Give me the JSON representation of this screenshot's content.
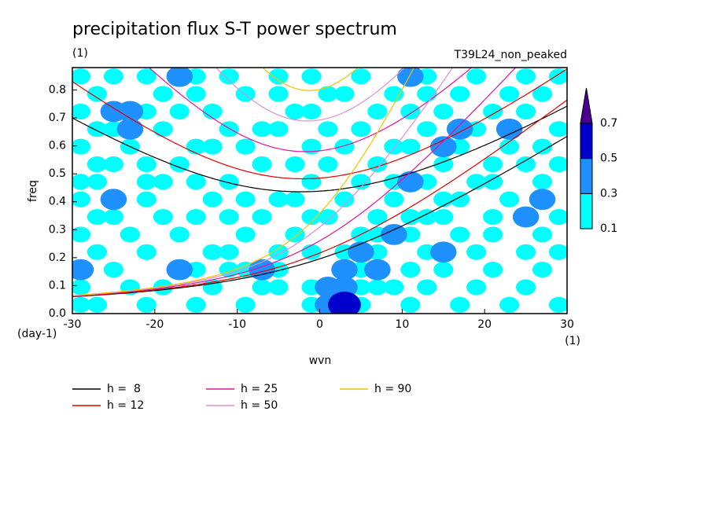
{
  "chart_data": {
    "type": "spectrum",
    "title": "precipitation flux S-T power spectrum",
    "subtitle": "(1)",
    "run_label": "T39L24_non_peaked",
    "x_label": "wvn",
    "y_label": "freq",
    "y_unit": "(day-1)",
    "x_unit": "(1)",
    "xlim": [
      -30,
      30
    ],
    "ylim": [
      0,
      0.88
    ],
    "xticks": [
      -30,
      -20,
      -10,
      0,
      10,
      20,
      30
    ],
    "yticks": [
      {
        "value": 0,
        "label": "0.0"
      },
      0.1,
      0.2,
      0.3,
      0.4,
      0.5,
      0.6,
      0.7,
      0.8
    ],
    "colorbar": {
      "levels": [
        0.1,
        0.3,
        0.5,
        0.7
      ],
      "colors": [
        "#00ffff",
        "#1e90ff",
        "#0000cd",
        "#4b0092"
      ]
    },
    "field": {
      "values": [
        [
          0.1,
          0.1,
          0,
          0,
          0.1,
          0,
          0,
          0.1,
          0,
          0,
          0.1,
          0,
          0,
          0,
          0.1,
          0.3,
          0.5,
          0.1,
          0,
          0,
          0.1,
          0,
          0,
          0.1,
          0,
          0,
          0.1,
          0,
          0,
          0.1
        ],
        [
          0.1,
          0,
          0,
          0.1,
          0,
          0.1,
          0,
          0,
          0.1,
          0,
          0,
          0.1,
          0.1,
          0,
          0.1,
          0.3,
          0.3,
          0.1,
          0.1,
          0.1,
          0,
          0.1,
          0,
          0,
          0.1,
          0,
          0,
          0.1,
          0,
          0
        ],
        [
          0.3,
          0,
          0.1,
          0,
          0,
          0,
          0.3,
          0.1,
          0,
          0.1,
          0.1,
          0.3,
          0.1,
          0,
          0,
          0,
          0.3,
          0.1,
          0.3,
          0,
          0.1,
          0,
          0.1,
          0,
          0,
          0.1,
          0,
          0,
          0.1,
          0
        ],
        [
          0,
          0.1,
          0,
          0,
          0.1,
          0,
          0,
          0,
          0.1,
          0.1,
          0,
          0,
          0.1,
          0,
          0.1,
          0,
          0.1,
          0.3,
          0.1,
          0,
          0,
          0.1,
          0.3,
          0,
          0.1,
          0,
          0,
          0.1,
          0,
          0.1
        ],
        [
          0.1,
          0,
          0,
          0.1,
          0,
          0,
          0.1,
          0,
          0,
          0,
          0.1,
          0,
          0,
          0.1,
          0,
          0,
          0,
          0.1,
          0.1,
          0.3,
          0.1,
          0,
          0,
          0.1,
          0,
          0.1,
          0,
          0,
          0.1,
          0
        ],
        [
          0,
          0.1,
          0.1,
          0,
          0,
          0.1,
          0,
          0.1,
          0,
          0.1,
          0,
          0.1,
          0,
          0,
          0.1,
          0.1,
          0,
          0,
          0.1,
          0,
          0.1,
          0.1,
          0.1,
          0,
          0,
          0.1,
          0,
          0.3,
          0,
          0.1
        ],
        [
          0.1,
          0,
          0.3,
          0,
          0.1,
          0,
          0,
          0,
          0.1,
          0,
          0.1,
          0,
          0.1,
          0.1,
          0,
          0,
          0.1,
          0,
          0,
          0.1,
          0,
          0,
          0.1,
          0.1,
          0,
          0,
          0.1,
          0,
          0.3,
          0
        ],
        [
          0.1,
          0.1,
          0,
          0,
          0.1,
          0.1,
          0,
          0.1,
          0,
          0.1,
          0,
          0,
          0,
          0,
          0.1,
          0,
          0,
          0.1,
          0,
          0.1,
          0.3,
          0.1,
          0,
          0,
          0.1,
          0.1,
          0,
          0,
          0.1,
          0
        ],
        [
          0,
          0.1,
          0.1,
          0,
          0.1,
          0,
          0.1,
          0,
          0,
          0,
          0,
          0.1,
          0,
          0.1,
          0,
          0.1,
          0,
          0,
          0.1,
          0,
          0,
          0,
          0.1,
          0,
          0,
          0.1,
          0,
          0.1,
          0,
          0.1
        ],
        [
          0.1,
          0,
          0,
          0.1,
          0,
          0,
          0,
          0.1,
          0.1,
          0,
          0.1,
          0,
          0,
          0,
          0.1,
          0,
          0.1,
          0,
          0,
          0.1,
          0.1,
          0,
          0.3,
          0.1,
          0,
          0,
          0.1,
          0,
          0.1,
          0
        ],
        [
          0,
          0.1,
          0.1,
          0.3,
          0,
          0.1,
          0,
          0,
          0,
          0.1,
          0,
          0.1,
          0.1,
          0,
          0,
          0.1,
          0,
          0.1,
          0,
          0,
          0,
          0.1,
          0,
          0.3,
          0.1,
          0,
          0.3,
          0,
          0,
          0.1
        ],
        [
          0.1,
          0,
          0.3,
          0.3,
          0.1,
          0,
          0.1,
          0,
          0.1,
          0,
          0,
          0,
          0,
          0.1,
          0.1,
          0,
          0,
          0,
          0.1,
          0,
          0.1,
          0,
          0.1,
          0,
          0,
          0.1,
          0,
          0.1,
          0,
          0
        ],
        [
          0,
          0.1,
          0,
          0,
          0,
          0.1,
          0,
          0.1,
          0,
          0,
          0.1,
          0,
          0.1,
          0,
          0,
          0.1,
          0.1,
          0,
          0,
          0.1,
          0,
          0.1,
          0,
          0.1,
          0,
          0,
          0.1,
          0,
          0.1,
          0
        ],
        [
          0.1,
          0,
          0.1,
          0,
          0.1,
          0,
          0.3,
          0.1,
          0,
          0.1,
          0,
          0,
          0.1,
          0,
          0.1,
          0,
          0,
          0.1,
          0,
          0,
          0.3,
          0.1,
          0,
          0,
          0.1,
          0,
          0,
          0.1,
          0,
          0.1
        ]
      ]
    },
    "series": [
      {
        "name": "h =  8",
        "color": "#000000",
        "h": 8
      },
      {
        "name": "h = 12",
        "color": "#e00000",
        "h": 12
      },
      {
        "name": "h = 25",
        "color": "#e0169c",
        "h": 25
      },
      {
        "name": "h = 50",
        "color": "#d890d8",
        "h": 50
      },
      {
        "name": "h = 90",
        "color": "#f0c400",
        "h": 90
      }
    ]
  }
}
